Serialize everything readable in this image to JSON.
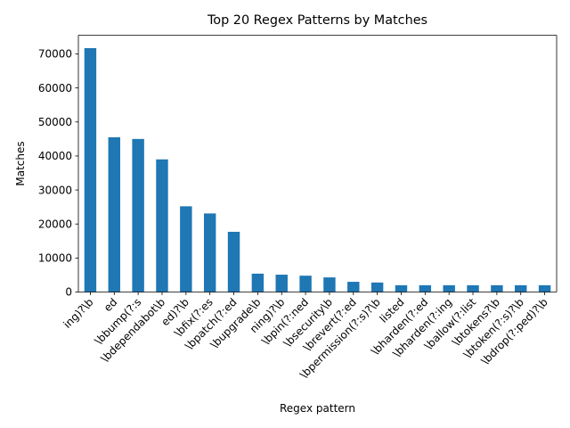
{
  "chart_data": {
    "type": "bar",
    "title": "Top 20 Regex Patterns by Matches",
    "xlabel": "Regex pattern",
    "ylabel": "Matches",
    "ylim": [
      0,
      75500
    ],
    "yticks": [
      0,
      10000,
      20000,
      30000,
      40000,
      50000,
      60000,
      70000
    ],
    "grid": false,
    "legend": "none",
    "bar_color": "#1f77b4",
    "categories": [
      "ing)?\\b",
      "ed",
      "\\bbump(?:s",
      "\\bdependabot\\b",
      "ed)?\\b",
      "\\bfix(?:es",
      "\\bpatch(?:ed",
      "\\bupgrade\\b",
      "ning)?\\b",
      "\\bpin(?:ned",
      "\\bsecurity\\b",
      "\\brevert(?:ed",
      "\\bpermission(?:s)?\\b",
      "listed",
      "\\bharden(?:ed",
      "\\bharden(?:ing",
      "\\ballow(?:list",
      "\\btokens?\\b",
      "\\btoken(?:s)?\\b",
      "\\bdrop(?:ped)?\\b"
    ],
    "values": [
      71700,
      45500,
      45000,
      39000,
      25200,
      23100,
      17700,
      5400,
      5100,
      4800,
      4300,
      3000,
      2800,
      2000,
      2000,
      2000,
      2000,
      2000,
      2000,
      2000
    ]
  }
}
